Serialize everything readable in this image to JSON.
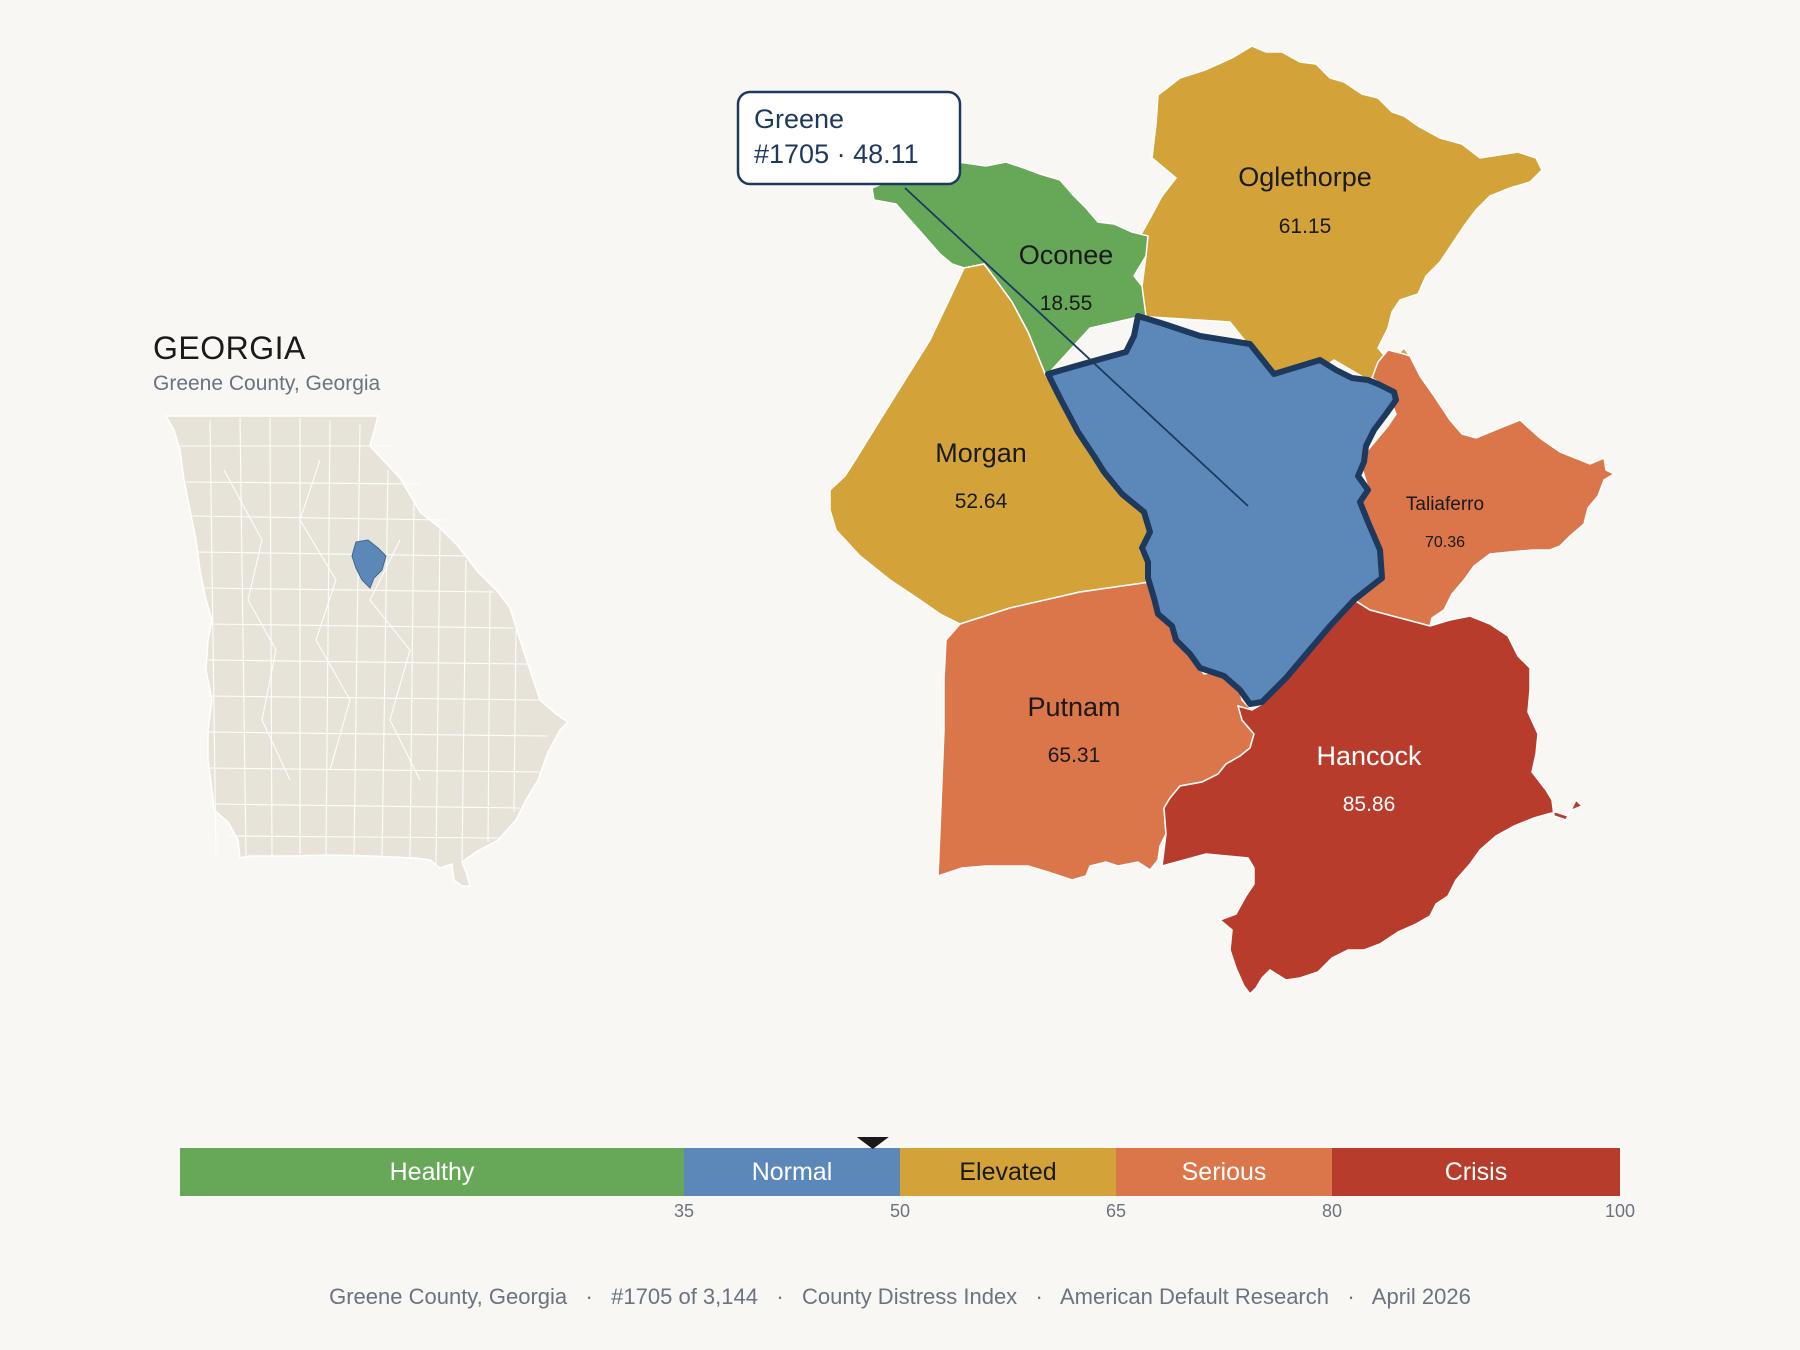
{
  "inset": {
    "state_name": "GEORGIA",
    "subtitle": "Greene County, Georgia"
  },
  "callout": {
    "county": "Greene",
    "rank_score": "#1705 · 48.11"
  },
  "counties": [
    {
      "id": "oconee",
      "name": "Oconee",
      "score": "18.55",
      "color": "#66a758"
    },
    {
      "id": "oglethorpe",
      "name": "Oglethorpe",
      "score": "61.15",
      "color": "#d3a33a"
    },
    {
      "id": "morgan",
      "name": "Morgan",
      "score": "52.64",
      "color": "#d3a33a"
    },
    {
      "id": "greene",
      "name": "Greene",
      "score": "48.11",
      "color": "#5b88b8"
    },
    {
      "id": "taliaferro",
      "name": "Taliaferro",
      "score": "70.36",
      "color": "#db754a"
    },
    {
      "id": "putnam",
      "name": "Putnam",
      "score": "65.31",
      "color": "#db754a"
    },
    {
      "id": "hancock",
      "name": "Hancock",
      "score": "85.86",
      "color": "#b83c2c"
    }
  ],
  "legend": {
    "marker_value": 48.11,
    "categories": [
      {
        "label": "Healthy",
        "min": 0,
        "max": 35,
        "color": "#66a758"
      },
      {
        "label": "Normal",
        "min": 35,
        "max": 50,
        "color": "#5b88b8"
      },
      {
        "label": "Elevated",
        "min": 50,
        "max": 65,
        "color": "#d3a33a"
      },
      {
        "label": "Serious",
        "min": 65,
        "max": 80,
        "color": "#db754a"
      },
      {
        "label": "Crisis",
        "min": 80,
        "max": 100,
        "color": "#b83c2c"
      }
    ],
    "ticks": [
      "35",
      "50",
      "65",
      "80",
      "100"
    ]
  },
  "footer": {
    "place": "Greene County, Georgia",
    "rank": "#1705 of 3,144",
    "index": "County Distress Index",
    "source": "American Default Research",
    "date": "April 2026"
  },
  "colors": {
    "background": "#f9f7f3",
    "state_fill": "#e8e3d8",
    "highlight_outline": "#1d3a5e"
  }
}
